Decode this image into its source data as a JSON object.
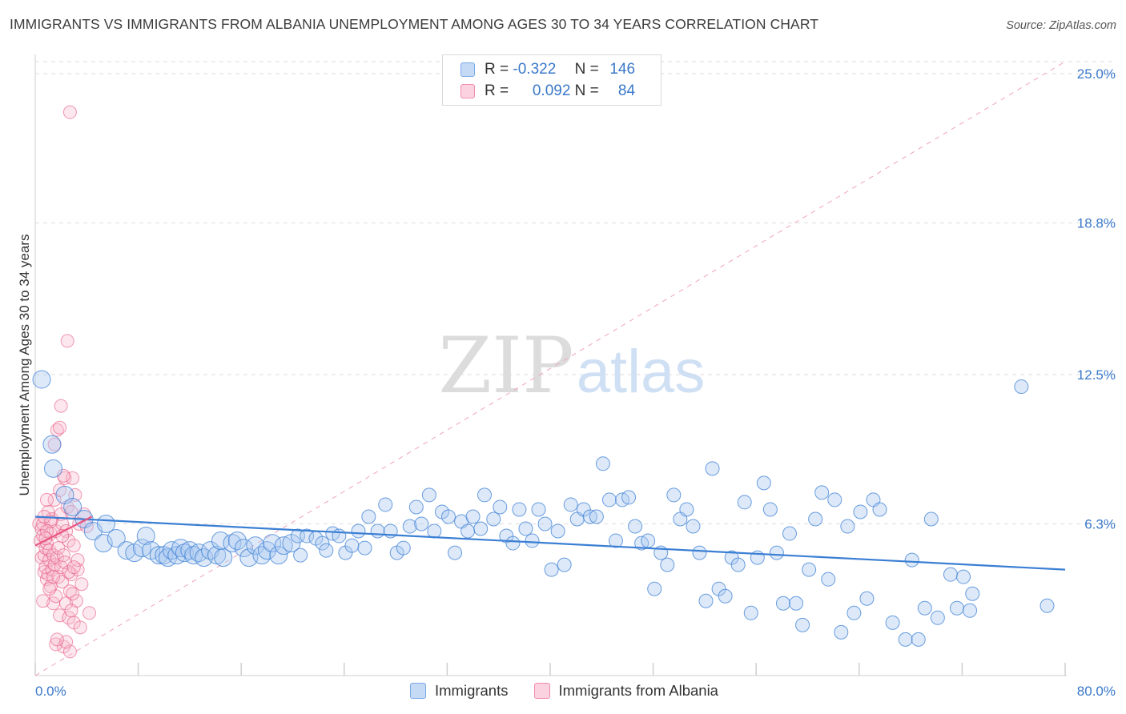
{
  "header": {
    "title": "IMMIGRANTS VS IMMIGRANTS FROM ALBANIA UNEMPLOYMENT AMONG AGES 30 TO 34 YEARS CORRELATION CHART",
    "source": "Source: ZipAtlas.com"
  },
  "watermark": {
    "zip": "ZIP",
    "atlas": "atlas"
  },
  "legend": {
    "rows": [
      {
        "r_label": "R =",
        "r_value": "-0.322",
        "n_label": "N =",
        "n_value": "146",
        "color": "#7aaae8"
      },
      {
        "r_label": "R =",
        "r_value": "0.092",
        "n_label": "N =",
        "n_value": "84",
        "color": "#f08cab"
      }
    ]
  },
  "bottom_legend": {
    "immigrants": "Immigrants",
    "albania": "Immigrants from Albania"
  },
  "colors": {
    "blue": "#3b7fd4",
    "blue_fill": "#a9c9f0",
    "pink": "#e8557f",
    "pink_fill": "#f6b9cd",
    "grid": "#dedede",
    "tick_text": "#3a78c9"
  },
  "chart_data": {
    "type": "scatter",
    "title": "IMMIGRANTS VS IMMIGRANTS FROM ALBANIA UNEMPLOYMENT AMONG AGES 30 TO 34 YEARS CORRELATION CHART",
    "xlabel": "",
    "ylabel": "Unemployment Among Ages 30 to 34 years",
    "xlim": [
      0,
      80
    ],
    "ylim": [
      0,
      25.5
    ],
    "x_tick_labels": [
      "0.0%",
      "80.0%"
    ],
    "y_ticks": [
      6.3,
      12.5,
      18.8,
      25.0
    ],
    "y_tick_labels": [
      "6.3%",
      "12.5%",
      "18.8%",
      "25.0%"
    ],
    "grid": true,
    "legend_position": "top-center",
    "series": [
      {
        "name": "Immigrants",
        "color": "#3b7fd4",
        "trend": {
          "x": [
            0,
            80
          ],
          "y": [
            6.6,
            4.4
          ]
        },
        "points": [
          [
            0.5,
            12.3
          ],
          [
            1.3,
            9.6
          ],
          [
            1.4,
            8.6
          ],
          [
            2.3,
            7.5
          ],
          [
            2.9,
            7.0
          ],
          [
            3.8,
            6.5
          ],
          [
            4.5,
            6.0
          ],
          [
            5.5,
            6.3
          ],
          [
            5.3,
            5.5
          ],
          [
            6.3,
            5.7
          ],
          [
            7.1,
            5.2
          ],
          [
            7.7,
            5.1
          ],
          [
            8.3,
            5.3
          ],
          [
            8.6,
            5.8
          ],
          [
            9.0,
            5.2
          ],
          [
            9.6,
            5.0
          ],
          [
            10.0,
            5.0
          ],
          [
            10.3,
            4.9
          ],
          [
            10.6,
            5.2
          ],
          [
            11.0,
            5.0
          ],
          [
            11.3,
            5.3
          ],
          [
            11.6,
            5.1
          ],
          [
            12.0,
            5.2
          ],
          [
            12.3,
            5.0
          ],
          [
            12.7,
            5.1
          ],
          [
            13.1,
            4.9
          ],
          [
            13.6,
            5.2
          ],
          [
            14.1,
            5.0
          ],
          [
            14.4,
            5.6
          ],
          [
            14.6,
            4.9
          ],
          [
            15.3,
            5.5
          ],
          [
            15.7,
            5.6
          ],
          [
            16.2,
            5.3
          ],
          [
            16.6,
            4.9
          ],
          [
            17.1,
            5.4
          ],
          [
            17.6,
            5.0
          ],
          [
            18.0,
            5.2
          ],
          [
            18.4,
            5.5
          ],
          [
            18.9,
            5.0
          ],
          [
            19.3,
            5.4
          ],
          [
            19.9,
            5.5
          ],
          [
            20.4,
            5.8
          ],
          [
            20.6,
            5.0
          ],
          [
            21.1,
            5.8
          ],
          [
            21.8,
            5.7
          ],
          [
            22.3,
            5.5
          ],
          [
            22.6,
            5.2
          ],
          [
            23.1,
            5.9
          ],
          [
            23.6,
            5.8
          ],
          [
            24.1,
            5.1
          ],
          [
            24.6,
            5.4
          ],
          [
            25.1,
            6.0
          ],
          [
            25.6,
            5.3
          ],
          [
            25.9,
            6.6
          ],
          [
            26.6,
            6.0
          ],
          [
            27.2,
            7.1
          ],
          [
            27.6,
            6.0
          ],
          [
            28.1,
            5.1
          ],
          [
            28.6,
            5.3
          ],
          [
            29.1,
            6.2
          ],
          [
            29.6,
            7.0
          ],
          [
            30.0,
            6.3
          ],
          [
            30.6,
            7.5
          ],
          [
            31.0,
            6.0
          ],
          [
            31.6,
            6.8
          ],
          [
            32.1,
            6.6
          ],
          [
            32.6,
            5.1
          ],
          [
            33.1,
            6.4
          ],
          [
            33.6,
            6.0
          ],
          [
            34.0,
            6.6
          ],
          [
            34.6,
            6.1
          ],
          [
            34.9,
            7.5
          ],
          [
            35.6,
            6.5
          ],
          [
            36.1,
            7.0
          ],
          [
            36.6,
            5.8
          ],
          [
            37.1,
            5.5
          ],
          [
            37.6,
            6.9
          ],
          [
            38.1,
            6.1
          ],
          [
            38.6,
            5.6
          ],
          [
            39.1,
            6.9
          ],
          [
            39.6,
            6.3
          ],
          [
            40.1,
            4.4
          ],
          [
            40.6,
            6.0
          ],
          [
            41.1,
            4.6
          ],
          [
            41.6,
            7.1
          ],
          [
            42.1,
            6.5
          ],
          [
            42.6,
            6.9
          ],
          [
            43.1,
            6.6
          ],
          [
            43.6,
            6.6
          ],
          [
            44.1,
            8.8
          ],
          [
            44.6,
            7.3
          ],
          [
            45.1,
            5.6
          ],
          [
            45.6,
            7.3
          ],
          [
            46.1,
            7.4
          ],
          [
            46.6,
            6.2
          ],
          [
            47.1,
            5.5
          ],
          [
            47.6,
            5.6
          ],
          [
            48.1,
            3.6
          ],
          [
            48.6,
            5.1
          ],
          [
            49.1,
            4.6
          ],
          [
            49.6,
            7.5
          ],
          [
            50.1,
            6.5
          ],
          [
            50.6,
            6.9
          ],
          [
            51.1,
            6.2
          ],
          [
            51.6,
            5.1
          ],
          [
            52.1,
            3.1
          ],
          [
            52.6,
            8.6
          ],
          [
            53.1,
            3.6
          ],
          [
            53.6,
            3.3
          ],
          [
            54.1,
            4.9
          ],
          [
            54.6,
            4.6
          ],
          [
            55.1,
            7.2
          ],
          [
            55.6,
            2.6
          ],
          [
            56.1,
            4.9
          ],
          [
            56.6,
            8.0
          ],
          [
            57.1,
            6.9
          ],
          [
            57.6,
            5.1
          ],
          [
            58.1,
            3.0
          ],
          [
            58.6,
            5.9
          ],
          [
            59.1,
            3.0
          ],
          [
            59.6,
            2.1
          ],
          [
            60.1,
            4.4
          ],
          [
            60.6,
            6.5
          ],
          [
            61.1,
            7.6
          ],
          [
            61.6,
            4.0
          ],
          [
            62.1,
            7.3
          ],
          [
            62.6,
            1.8
          ],
          [
            63.1,
            6.2
          ],
          [
            63.6,
            2.6
          ],
          [
            64.1,
            6.8
          ],
          [
            64.6,
            3.2
          ],
          [
            65.1,
            7.3
          ],
          [
            65.6,
            6.9
          ],
          [
            66.6,
            2.2
          ],
          [
            67.6,
            1.5
          ],
          [
            68.1,
            4.8
          ],
          [
            68.6,
            1.5
          ],
          [
            69.1,
            2.8
          ],
          [
            69.6,
            6.5
          ],
          [
            70.1,
            2.4
          ],
          [
            71.1,
            4.2
          ],
          [
            71.6,
            2.8
          ],
          [
            72.1,
            4.1
          ],
          [
            72.6,
            2.7
          ],
          [
            72.8,
            3.4
          ],
          [
            76.6,
            12.0
          ],
          [
            78.6,
            2.9
          ]
        ]
      },
      {
        "name": "Immigrants from Albania",
        "color": "#e8557f",
        "trend": {
          "x": [
            0,
            4.4
          ],
          "y": [
            5.4,
            6.6
          ]
        },
        "points": [
          [
            0.3,
            6.3
          ],
          [
            0.4,
            5.6
          ],
          [
            0.5,
            4.9
          ],
          [
            0.5,
            6.1
          ],
          [
            0.6,
            6.3
          ],
          [
            0.6,
            5.8
          ],
          [
            0.7,
            4.3
          ],
          [
            0.7,
            5.0
          ],
          [
            0.8,
            4.5
          ],
          [
            0.8,
            5.3
          ],
          [
            0.9,
            4.0
          ],
          [
            0.9,
            5.5
          ],
          [
            1.0,
            6.8
          ],
          [
            1.0,
            4.2
          ],
          [
            1.1,
            4.8
          ],
          [
            1.1,
            5.2
          ],
          [
            1.2,
            3.7
          ],
          [
            1.2,
            5.9
          ],
          [
            1.3,
            4.4
          ],
          [
            1.3,
            6.5
          ],
          [
            1.4,
            3.0
          ],
          [
            1.4,
            5.0
          ],
          [
            1.5,
            4.6
          ],
          [
            1.5,
            7.3
          ],
          [
            1.6,
            6.0
          ],
          [
            1.6,
            3.3
          ],
          [
            1.7,
            4.9
          ],
          [
            1.7,
            10.2
          ],
          [
            1.8,
            5.3
          ],
          [
            1.8,
            4.1
          ],
          [
            1.9,
            7.7
          ],
          [
            1.9,
            2.5
          ],
          [
            2.0,
            6.7
          ],
          [
            2.0,
            4.5
          ],
          [
            2.1,
            3.9
          ],
          [
            2.1,
            6.3
          ],
          [
            2.2,
            5.0
          ],
          [
            2.2,
            1.2
          ],
          [
            2.3,
            8.2
          ],
          [
            2.3,
            4.7
          ],
          [
            2.4,
            6.0
          ],
          [
            2.4,
            3.0
          ],
          [
            2.5,
            13.9
          ],
          [
            2.5,
            7.0
          ],
          [
            2.6,
            2.4
          ],
          [
            2.6,
            5.6
          ],
          [
            2.7,
            3.5
          ],
          [
            2.7,
            1.0
          ],
          [
            2.8,
            6.8
          ],
          [
            2.8,
            4.2
          ],
          [
            2.9,
            8.2
          ],
          [
            3.0,
            2.2
          ],
          [
            3.0,
            5.4
          ],
          [
            3.1,
            7.5
          ],
          [
            3.2,
            3.1
          ],
          [
            3.3,
            4.4
          ],
          [
            3.4,
            6.3
          ],
          [
            3.5,
            2.0
          ],
          [
            3.6,
            3.8
          ],
          [
            3.8,
            6.7
          ],
          [
            4.0,
            6.2
          ],
          [
            4.2,
            2.6
          ],
          [
            2.0,
            11.2
          ],
          [
            1.5,
            9.6
          ],
          [
            1.2,
            6.4
          ],
          [
            0.9,
            7.3
          ],
          [
            1.6,
            1.3
          ],
          [
            2.4,
            1.4
          ],
          [
            2.8,
            2.7
          ],
          [
            3.3,
            4.8
          ],
          [
            0.6,
            3.1
          ],
          [
            0.7,
            6.6
          ],
          [
            1.9,
            10.3
          ],
          [
            2.7,
            23.4
          ],
          [
            1.1,
            3.6
          ],
          [
            0.9,
            6.0
          ],
          [
            2.1,
            5.8
          ],
          [
            1.4,
            4.1
          ],
          [
            2.6,
            4.3
          ],
          [
            0.8,
            5.7
          ],
          [
            3.0,
            4.5
          ],
          [
            2.2,
            8.3
          ],
          [
            1.7,
            1.5
          ],
          [
            2.9,
            3.4
          ]
        ]
      }
    ],
    "reference_line": {
      "style": "dashed",
      "x": [
        0,
        80
      ],
      "y": [
        0,
        25.5
      ]
    }
  }
}
